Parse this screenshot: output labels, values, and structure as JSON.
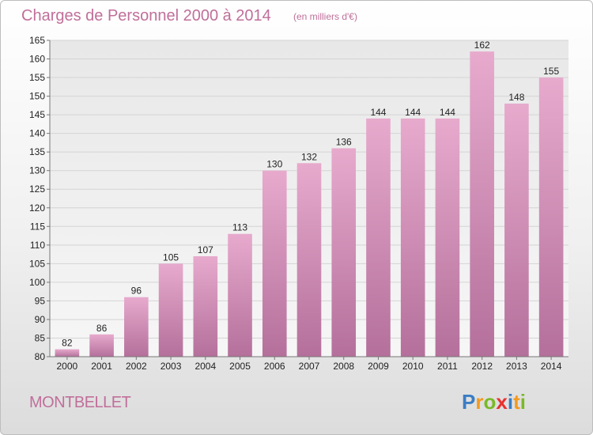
{
  "chart_data": {
    "type": "bar",
    "title": "Charges de Personnel 2000 à 2014",
    "subtitle": "(en milliers d'€)",
    "categories": [
      "2000",
      "2001",
      "2002",
      "2003",
      "2004",
      "2005",
      "2006",
      "2007",
      "2008",
      "2009",
      "2010",
      "2011",
      "2012",
      "2013",
      "2014"
    ],
    "values": [
      82,
      86,
      96,
      105,
      107,
      113,
      130,
      132,
      136,
      144,
      144,
      144,
      162,
      148,
      155
    ],
    "ylim": [
      80,
      165
    ],
    "yticks": [
      80,
      85,
      90,
      95,
      100,
      105,
      110,
      115,
      120,
      125,
      130,
      135,
      140,
      145,
      150,
      155,
      160,
      165
    ],
    "grid": true,
    "bar_color_top": "#e7aacd",
    "bar_color_bottom": "#b4709b"
  },
  "location": "MONTBELLET",
  "brand": {
    "letters": [
      "P",
      "r",
      "o",
      "x",
      "i",
      "t",
      "i"
    ],
    "colors": [
      "#3b7dc4",
      "#f29a1f",
      "#7ab929",
      "#e8312f",
      "#3b7dc4",
      "#f29a1f",
      "#7ab929"
    ]
  }
}
